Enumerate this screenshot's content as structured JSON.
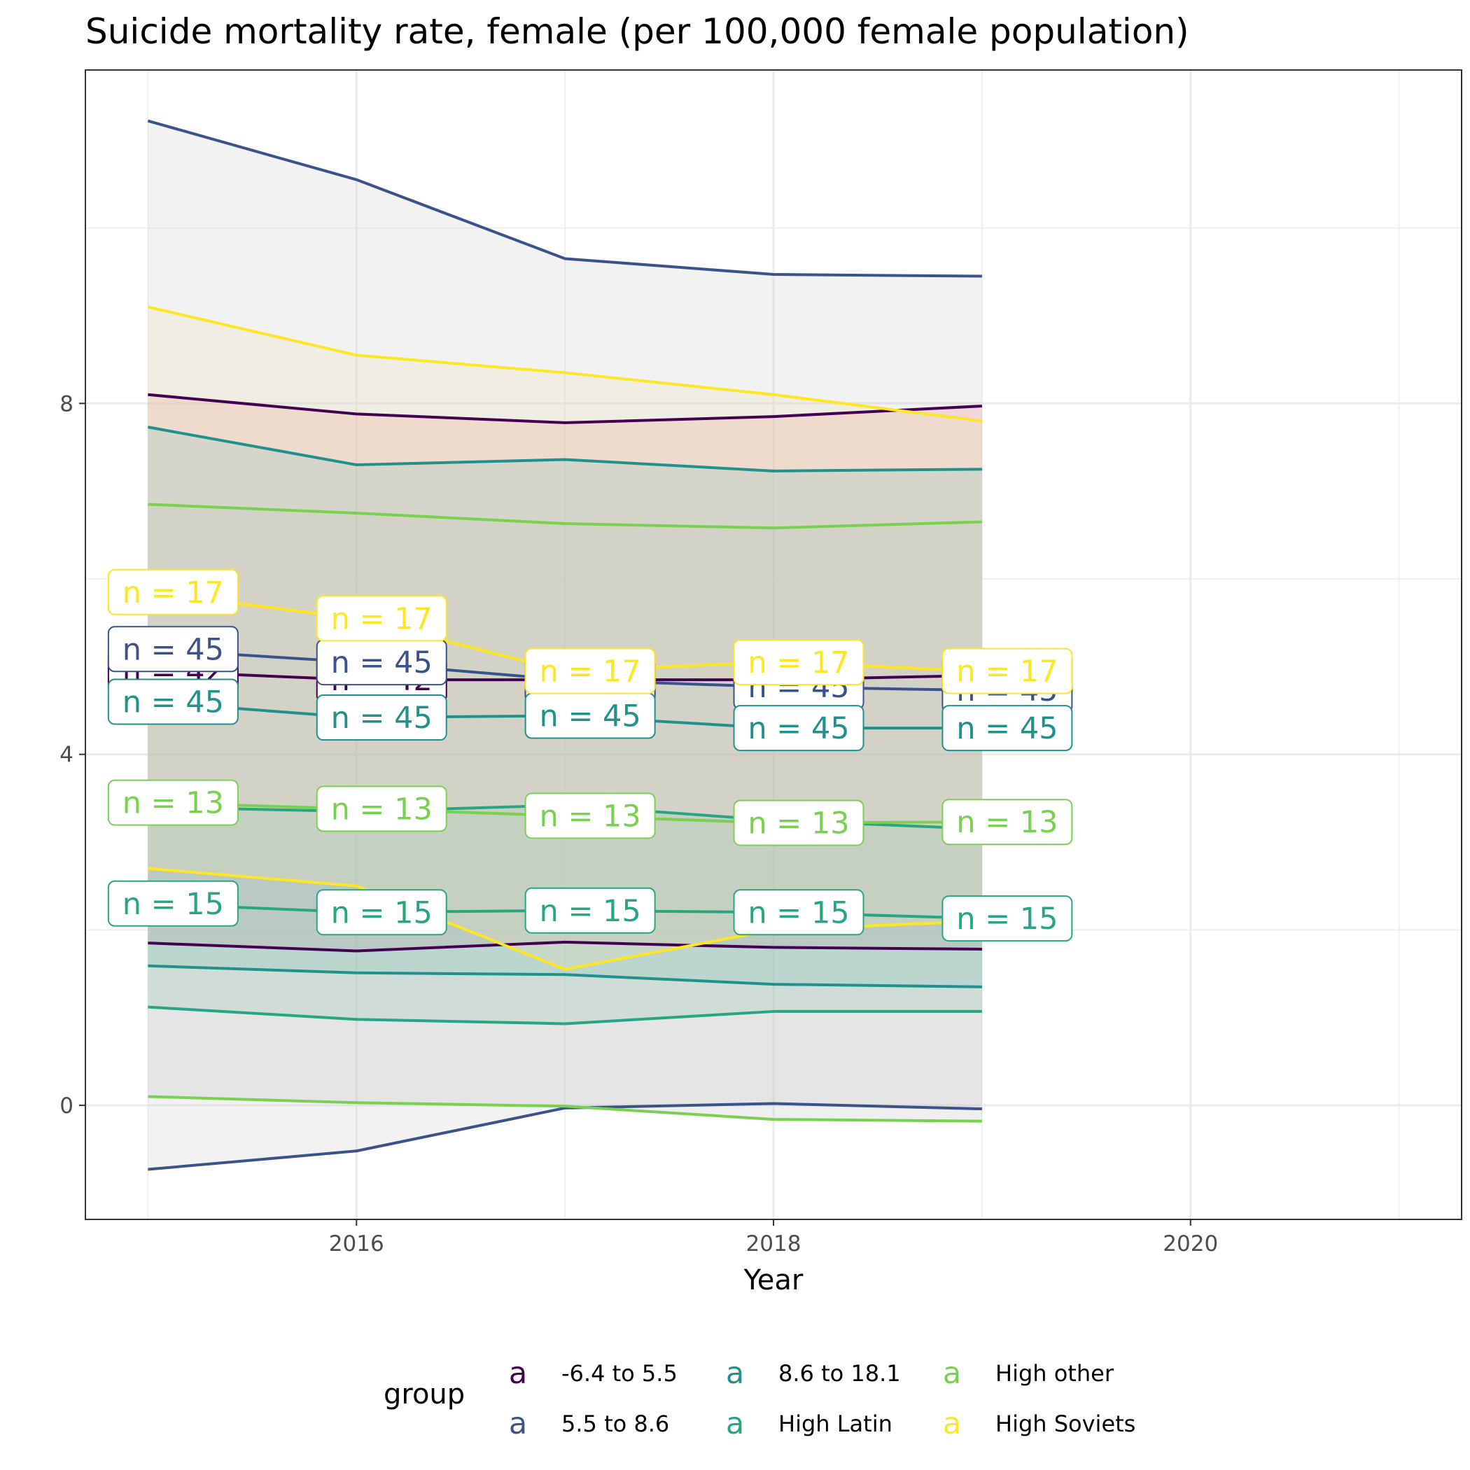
{
  "chart_data": {
    "type": "line",
    "title": "Suicide mortality rate, female (per 100,000 female population)",
    "xlabel": "Year",
    "ylabel": "",
    "xlim": [
      2014.7,
      2021.3
    ],
    "ylim": [
      -1.3,
      11.8
    ],
    "x_ticks": [
      2016,
      2018,
      2020
    ],
    "y_ticks": [
      0,
      4,
      8
    ],
    "grid": true,
    "legend": {
      "title": "group",
      "position": "bottom",
      "key_glyph": "a"
    },
    "x": [
      2015,
      2016,
      2017,
      2018,
      2019
    ],
    "series": [
      {
        "name": "-6.4 to 5.5",
        "color": "#440154",
        "fill": "#f8766d",
        "mean": [
          4.95,
          4.85,
          4.85,
          4.85,
          4.9
        ],
        "upper": [
          8.1,
          7.88,
          7.78,
          7.85,
          7.97
        ],
        "lower": [
          1.85,
          1.76,
          1.86,
          1.8,
          1.78
        ],
        "n_label": "n = 42"
      },
      {
        "name": "5.5 to 8.6",
        "color": "#3b528b",
        "fill": "#cccccc",
        "mean": [
          5.2,
          5.05,
          4.85,
          4.77,
          4.73
        ],
        "upper": [
          11.22,
          10.55,
          9.65,
          9.47,
          9.45
        ],
        "lower": [
          -0.73,
          -0.52,
          -0.03,
          0.02,
          -0.04
        ],
        "n_label": "n = 45"
      },
      {
        "name": "8.6 to 18.1",
        "color": "#21918c",
        "fill": "#66b8c0",
        "mean": [
          4.6,
          4.42,
          4.44,
          4.3,
          4.3
        ],
        "upper": [
          7.73,
          7.3,
          7.36,
          7.23,
          7.25
        ],
        "lower": [
          1.59,
          1.51,
          1.49,
          1.38,
          1.35
        ],
        "n_label": "n = 45"
      },
      {
        "name": "High Latin",
        "color": "#27a681",
        "fill": "#7bc8a4",
        "mean": [
          2.3,
          2.2,
          2.22,
          2.2,
          2.13
        ],
        "upper": [
          3.4,
          3.35,
          3.42,
          3.25,
          3.15
        ],
        "lower": [
          1.12,
          0.98,
          0.93,
          1.07,
          1.07
        ],
        "n_label": "n = 15"
      },
      {
        "name": "High other",
        "color": "#7ad151",
        "fill": "#bfbfbf",
        "mean": [
          3.45,
          3.38,
          3.3,
          3.22,
          3.23
        ],
        "upper": [
          6.85,
          6.75,
          6.63,
          6.58,
          6.65
        ],
        "lower": [
          0.1,
          0.03,
          -0.01,
          -0.16,
          -0.18
        ],
        "n_label": "n = 13"
      },
      {
        "name": "High Soviets",
        "color": "#fde725",
        "fill": "#ece4b9",
        "mean": [
          5.85,
          5.55,
          4.95,
          5.05,
          4.95
        ],
        "upper": [
          9.1,
          8.55,
          8.35,
          8.1,
          7.8
        ],
        "lower": [
          2.7,
          2.5,
          1.55,
          2.0,
          2.1
        ],
        "n_label": "n = 17"
      }
    ]
  }
}
